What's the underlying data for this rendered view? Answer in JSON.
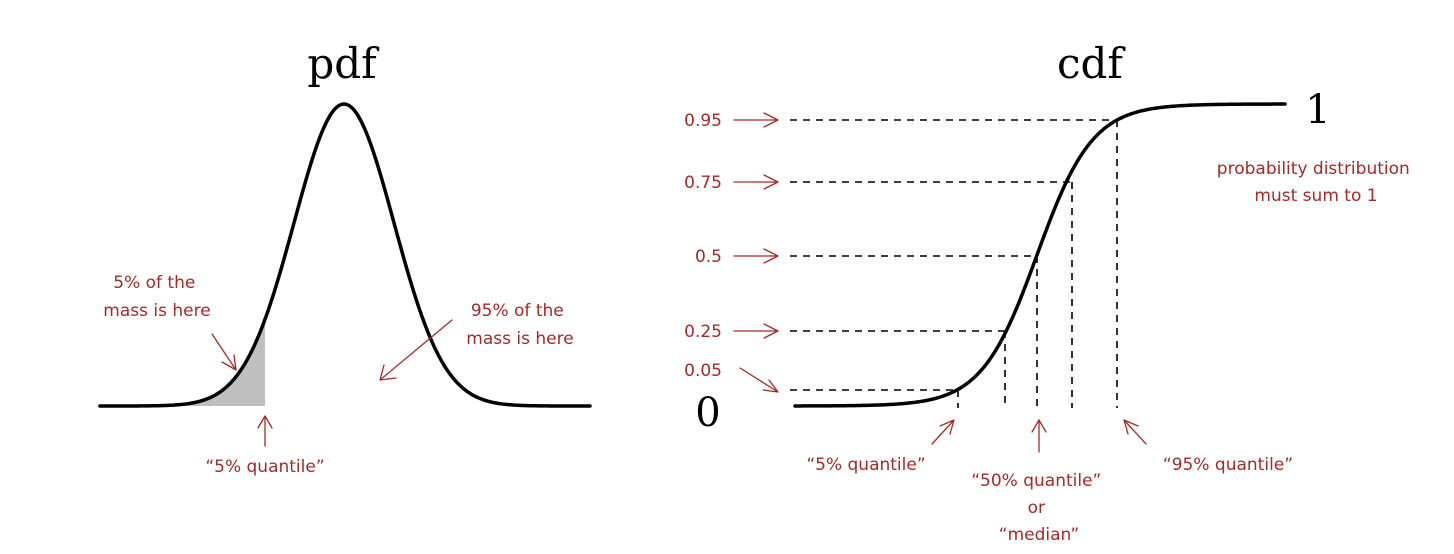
{
  "pdf_panel": {
    "title": "pdf",
    "lower_note": [
      "5% of the",
      "mass is here"
    ],
    "upper_note": [
      "95% of the",
      "mass is here"
    ],
    "quantile_label": "“5% quantile”"
  },
  "cdf_panel": {
    "title": "cdf",
    "top_value": "1",
    "bottom_value": "0",
    "levels": [
      "0.95",
      "0.75",
      "0.5",
      "0.25",
      "0.05"
    ],
    "sum_note": [
      "probability distribution",
      "must sum to 1"
    ],
    "q5_label": "“5% quantile”",
    "q50_label": [
      "“50% quantile”",
      "or",
      "“median”"
    ],
    "q95_label": "“95% quantile”"
  },
  "colors": {
    "annotation": "#a52a2a",
    "curve": "#000000",
    "shade": "#bfbfbf"
  }
}
